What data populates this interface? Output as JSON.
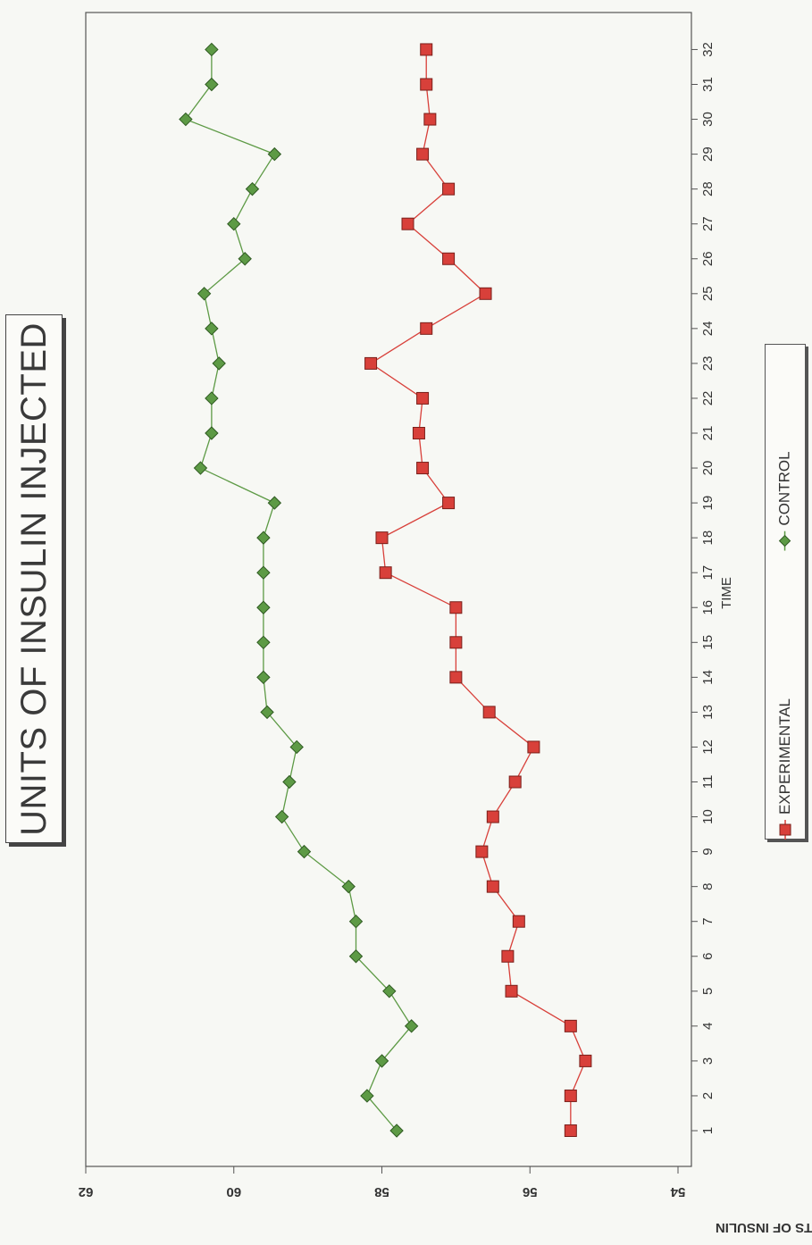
{
  "title": "UNITS OF INSULIN INJECTED",
  "colors": {
    "experimental": "#d8403a",
    "control": "#5d9a45",
    "axis": "#555555"
  },
  "legend": {
    "experimental": "EXPERIMENTAL",
    "control": "CONTROL"
  },
  "chart_data": {
    "type": "line",
    "title": "UNITS OF INSULIN INJECTED",
    "xlabel": "TIME",
    "ylabel": "UNITS OF INSULIN",
    "ylim": [
      54,
      62
    ],
    "yticks": [
      54,
      56,
      58,
      60,
      62
    ],
    "x": [
      1,
      2,
      3,
      4,
      5,
      6,
      7,
      8,
      9,
      10,
      11,
      12,
      13,
      14,
      15,
      16,
      17,
      18,
      19,
      20,
      21,
      22,
      23,
      24,
      25,
      26,
      27,
      28,
      29,
      30,
      31,
      32
    ],
    "legend_position": "bottom",
    "series": [
      {
        "name": "EXPERIMENTAL",
        "values": [
          55.45,
          55.45,
          55.25,
          55.45,
          56.25,
          56.3,
          56.15,
          56.5,
          56.65,
          56.5,
          56.2,
          55.95,
          56.55,
          57,
          57,
          57,
          57.95,
          58,
          57.1,
          57.45,
          57.5,
          57.45,
          58.15,
          57.4,
          56.6,
          57.1,
          57.65,
          57.1,
          57.45,
          57.35,
          57.4,
          57.4
        ]
      },
      {
        "name": "CONTROL",
        "values": [
          57.8,
          58.2,
          58,
          57.6,
          57.9,
          58.35,
          58.35,
          58.45,
          59.05,
          59.35,
          59.25,
          59.15,
          59.55,
          59.6,
          59.6,
          59.6,
          59.6,
          59.6,
          59.45,
          60.45,
          60.3,
          60.3,
          60.2,
          60.3,
          60.4,
          59.85,
          60,
          59.75,
          59.45,
          60.65,
          60.3,
          60.3
        ]
      }
    ]
  }
}
